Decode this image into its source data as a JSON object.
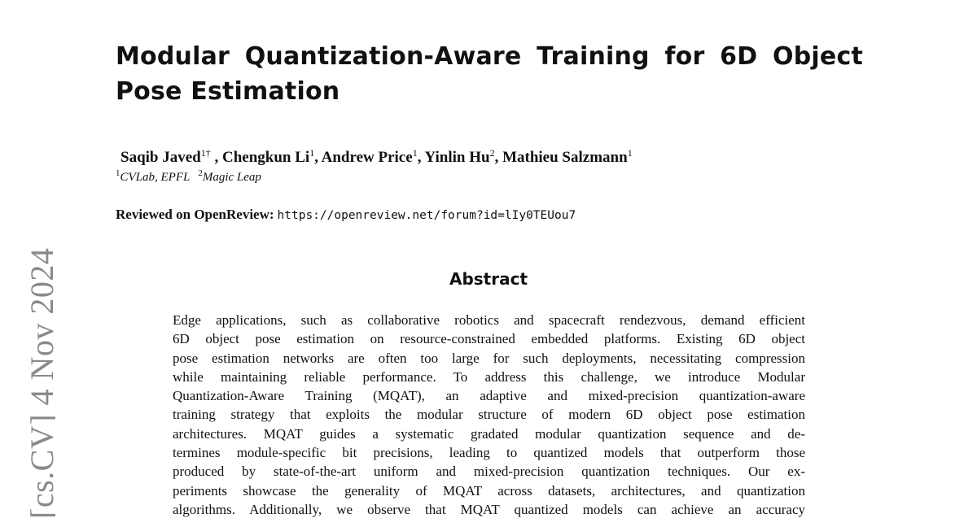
{
  "sidebar_stamp": "[cs.CV]  4 Nov 2024",
  "title": "Modular Quantization-Aware Training for 6D Object Pose Estimation",
  "authors": [
    {
      "name": "Saqib Javed",
      "sup": "1†",
      "sep": " , "
    },
    {
      "name": "Chengkun Li",
      "sup": "1",
      "sep": ", "
    },
    {
      "name": "Andrew Price",
      "sup": "1",
      "sep": ", "
    },
    {
      "name": "Yinlin Hu",
      "sup": "2",
      "sep": ", "
    },
    {
      "name": "Mathieu Salzmann",
      "sup": "1",
      "sep": ""
    }
  ],
  "affiliations": [
    {
      "sup": "1",
      "name": "CVLab, EPFL"
    },
    {
      "sup": "2",
      "name": "Magic Leap"
    }
  ],
  "review": {
    "label": "Reviewed on OpenReview:",
    "url": "https://openreview.net/forum?id=lIy0TEUou7"
  },
  "abstract": {
    "heading": "Abstract",
    "lines": [
      "Edge applications, such as collaborative robotics and spacecraft rendezvous, demand efficient",
      "6D object pose estimation on resource-constrained embedded platforms. Existing 6D object",
      "pose estimation networks are often too large for such deployments, necessitating compression",
      "while maintaining reliable performance. To address this challenge, we introduce Modular",
      "Quantization-Aware Training (MQAT), an adaptive and mixed-precision quantization-aware",
      "training strategy that exploits the modular structure of modern 6D object pose estimation",
      "architectures. MQAT guides a systematic gradated modular quantization sequence and de-",
      "termines module-specific bit precisions, leading to quantized models that outperform those",
      "produced by state-of-the-art uniform and mixed-precision quantization techniques. Our ex-",
      "periments showcase the generality of MQAT across datasets, architectures, and quantization",
      "algorithms. Additionally, we observe that MQAT quantized models can achieve an accuracy"
    ]
  }
}
